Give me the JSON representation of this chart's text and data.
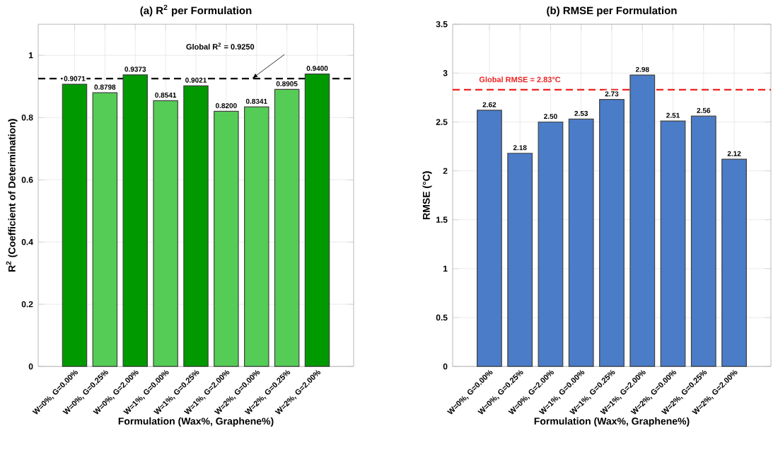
{
  "chart_data": [
    {
      "type": "bar",
      "title": "(a) R$^{2}$ per Formulation",
      "xlabel": "Formulation (Wax%, Graphene%)",
      "ylabel": "R$^{2}$ (Coefficient of Determination)",
      "categories": [
        "W=0%, G=0.00%",
        "W=0%, G=0.25%",
        "W=0%, G=2.00%",
        "W=1%, G=0.00%",
        "W=1%, G=0.25%",
        "W=1%, G=2.00%",
        "W=2%, G=0.00%",
        "W=2%, G=0.25%",
        "W=2%, G=2.00%"
      ],
      "values": [
        0.9071,
        0.8798,
        0.9373,
        0.8541,
        0.9021,
        0.82,
        0.8341,
        0.8905,
        0.94
      ],
      "value_labels": [
        "0.9071",
        "0.8798",
        "0.9373",
        "0.8541",
        "0.9021",
        "0.8200",
        "0.8341",
        "0.8905",
        "0.9400"
      ],
      "colors": [
        "#009900",
        "#55cc55",
        "#009900",
        "#55cc55",
        "#009900",
        "#55cc55",
        "#55cc55",
        "#55cc55",
        "#009900"
      ],
      "ylim": [
        0,
        1.1
      ],
      "yticks": [
        0,
        0.2,
        0.4,
        0.6,
        0.8,
        1
      ],
      "ref_lines": [
        {
          "axis": "y",
          "value": 0.925,
          "label": "Global R$^{2}$ = 0.9250",
          "color": "#000000",
          "line_style": "dashed"
        }
      ],
      "grid": true
    },
    {
      "type": "bar",
      "title": "(b) RMSE per Formulation",
      "xlabel": "Formulation (Wax%, Graphene%)",
      "ylabel": "RMSE (°C)",
      "categories": [
        "W=0%, G=0.00%",
        "W=0%, G=0.25%",
        "W=0%, G=2.00%",
        "W=1%, G=0.00%",
        "W=1%, G=0.25%",
        "W=1%, G=2.00%",
        "W=2%, G=0.00%",
        "W=2%, G=0.25%",
        "W=2%, G=2.00%"
      ],
      "values": [
        2.62,
        2.18,
        2.5,
        2.53,
        2.73,
        2.98,
        2.51,
        2.56,
        2.12
      ],
      "value_labels": [
        "2.62",
        "2.18",
        "2.50",
        "2.53",
        "2.73",
        "2.98",
        "2.51",
        "2.56",
        "2.12"
      ],
      "color": "#4a7cc8",
      "ylim": [
        0,
        3.5
      ],
      "yticks": [
        0,
        0.5,
        1,
        1.5,
        2,
        2.5,
        3,
        3.5
      ],
      "ref_lines": [
        {
          "axis": "y",
          "value": 2.83,
          "label": "Global RMSE = 2.83°C",
          "color": "#ee2222",
          "line_style": "dashed"
        }
      ],
      "grid": true
    }
  ]
}
